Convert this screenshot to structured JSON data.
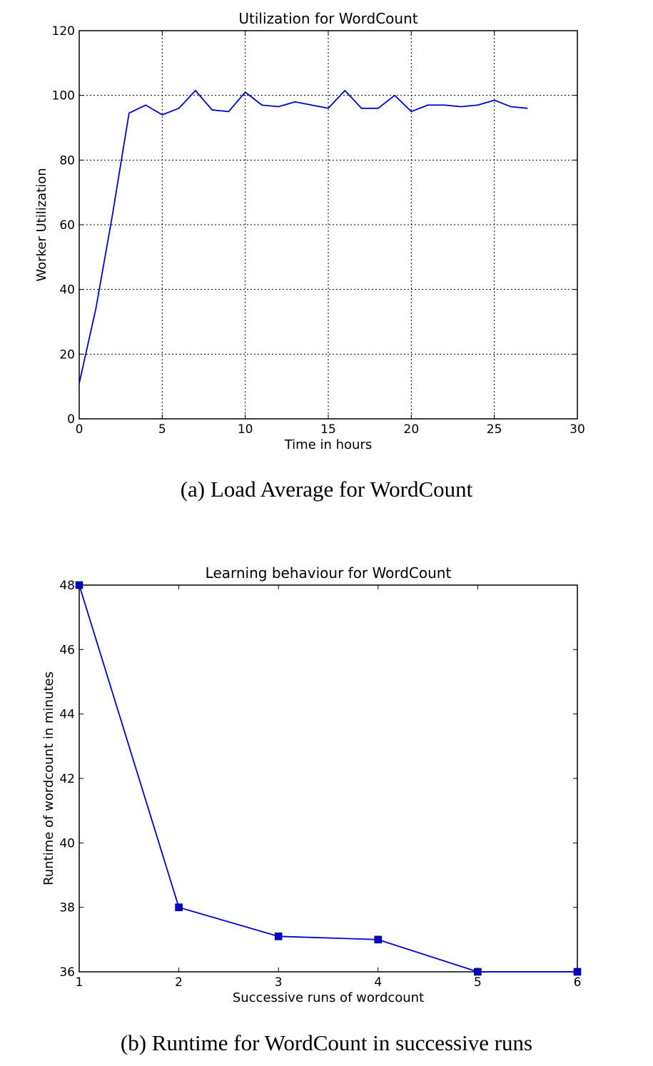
{
  "charts": [
    {
      "id": "a",
      "caption": "(a) Load Average for WordCount",
      "chart_data": {
        "type": "line",
        "title": "Utilization for WordCount",
        "xlabel": "Time in hours",
        "ylabel": "Worker Utilization",
        "xlim": [
          0,
          30
        ],
        "ylim": [
          0,
          120
        ],
        "xticks": [
          0,
          5,
          10,
          15,
          20,
          25,
          30
        ],
        "yticks": [
          0,
          20,
          40,
          60,
          80,
          100,
          120
        ],
        "grid": true,
        "color": "#0000cc",
        "markers": false,
        "series": [
          {
            "x": [
              0,
              1,
              2,
              3,
              4,
              5,
              6,
              7,
              8,
              9,
              10,
              11,
              12,
              13,
              14,
              15,
              16,
              17,
              18,
              19,
              20,
              21,
              22,
              23,
              24,
              25,
              26,
              27
            ],
            "values": [
              11,
              34,
              63,
              94.5,
              97,
              94,
              96,
              101.5,
              95.5,
              95,
              101,
              97,
              96.5,
              98,
              97,
              96,
              101.5,
              96,
              96,
              100,
              95,
              97,
              97,
              96.5,
              97,
              98.5,
              96.5,
              96
            ]
          }
        ]
      }
    },
    {
      "id": "b",
      "caption": "(b) Runtime for WordCount in successive runs",
      "chart_data": {
        "type": "line",
        "title": "Learning behaviour for WordCount",
        "xlabel": "Successive runs of wordcount",
        "ylabel": "Runtime of wordcount in minutes",
        "xlim": [
          1,
          6
        ],
        "ylim": [
          36,
          48
        ],
        "xticks": [
          1,
          2,
          3,
          4,
          5,
          6
        ],
        "yticks": [
          36,
          38,
          40,
          42,
          44,
          46,
          48
        ],
        "grid": false,
        "color": "#0000cc",
        "markers": true,
        "marker_shape": "square",
        "series": [
          {
            "x": [
              1,
              2,
              3,
              4,
              5,
              6
            ],
            "values": [
              48,
              38,
              37.1,
              37,
              36,
              36
            ]
          }
        ]
      }
    }
  ]
}
